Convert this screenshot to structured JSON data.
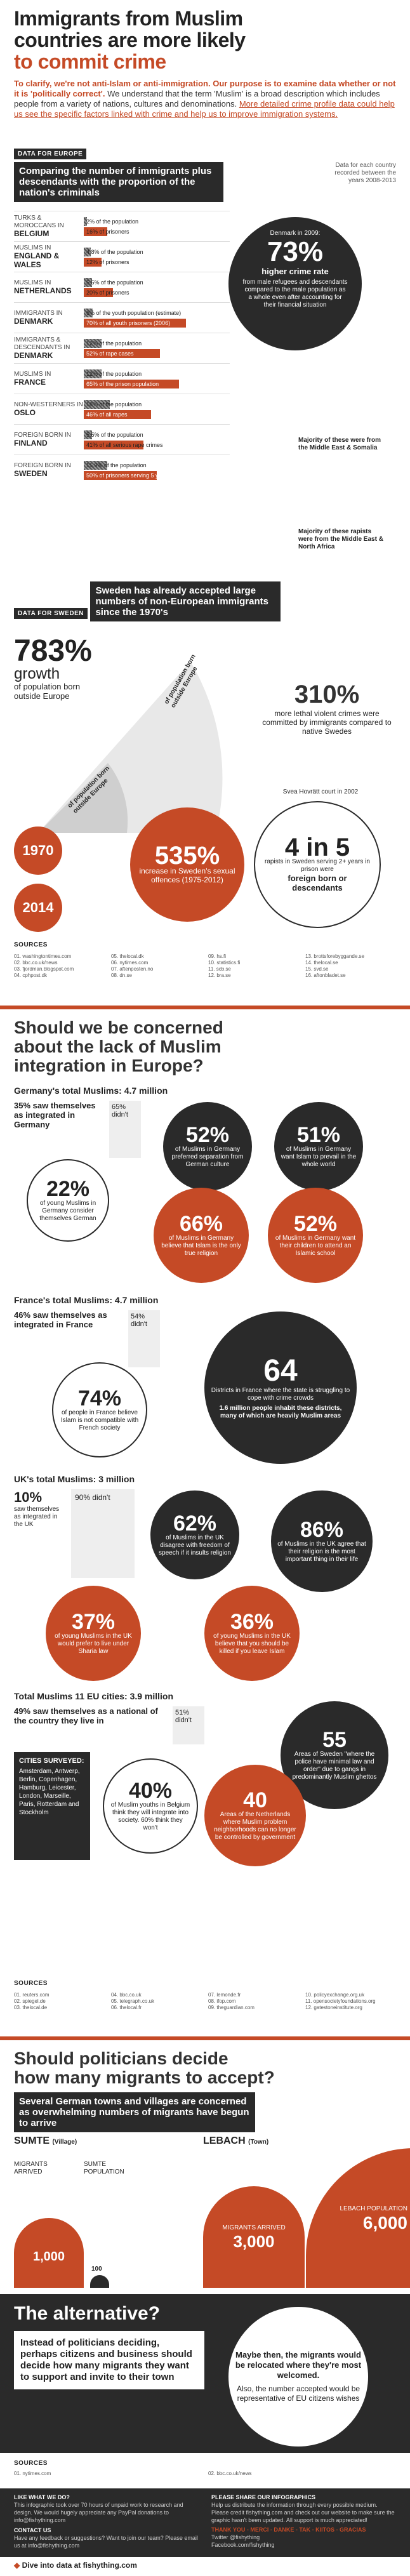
{
  "header": {
    "title_line1": "Immigrants from Muslim",
    "title_line2": "countries are more likely",
    "title_line3": "to commit crime",
    "intro_bold": "To clarify, we're not anti-Islam or anti-immigration. Our purpose is to examine data whether or not it is 'politically correct'.",
    "intro_text": "We understand that the term 'Muslim' is a broad description which includes people from a variety of nations, cultures and denominations.",
    "intro_link": "More detailed crime profile data could help us see the specific factors linked with crime and help us to improve immigration systems."
  },
  "europe": {
    "tag": "DATA FOR EUROPE",
    "title": "Comparing the number of immigrants plus descendants with the proportion of the nation's criminals",
    "data_note": "Data for each country recorded between the years 2008-2013",
    "rows": [
      {
        "country": "BELGIUM",
        "pre": "TURKS & MOROCCANS IN",
        "b1": "2% of the population",
        "b1v": 2,
        "b2": "16% of prisoners",
        "b2v": 16
      },
      {
        "country": "ENGLAND & WALES",
        "pre": "MUSLIMS IN",
        "b1": "4.8% of the population",
        "b1v": 4.8,
        "b2": "12% of prisoners",
        "b2v": 12
      },
      {
        "country": "NETHERLANDS",
        "pre": "MUSLIMS IN",
        "b1": "5.5% of the population",
        "b1v": 5.5,
        "b2": "20% of prisoners",
        "b2v": 20
      },
      {
        "country": "DENMARK",
        "pre": "IMMIGRANTS IN",
        "b1": "6% of the youth population (estimate)",
        "b1v": 6,
        "b2": "70% of all youth prisoners (2006)",
        "b2v": 70
      },
      {
        "country": "DENMARK",
        "pre": "IMMIGRANTS & DESCENDANTS IN",
        "b1": "12% of the population",
        "b1v": 12,
        "b2": "52% of rape cases",
        "b2v": 52
      },
      {
        "country": "FRANCE",
        "pre": "MUSLIMS IN",
        "b1": "12% of the population",
        "b1v": 12,
        "b2": "65% of the prison population",
        "b2v": 65
      },
      {
        "country": "OSLO",
        "pre": "NON-WESTERNERS IN",
        "b1": "18% of the population",
        "b1v": 18,
        "b2": "46% of all rapes",
        "b2v": 46
      },
      {
        "country": "FINLAND",
        "pre": "FOREIGN BORN IN",
        "b1": "5.5% of the population",
        "b1v": 5.5,
        "b2": "41% of all serious rape crimes",
        "b2v": 41
      },
      {
        "country": "SWEDEN",
        "pre": "FOREIGN BORN IN",
        "b1": "15.9% of the population",
        "b1v": 15.9,
        "b2": "50% of prisoners serving 5 years",
        "b2v": 50
      }
    ],
    "denmark_callout": {
      "label": "Denmark in 2009:",
      "value": "73%",
      "text": "higher crime rate",
      "detail": "from male refugees and descendants compared to the male population as a whole even after accounting for their financial situation"
    },
    "denmark_rape_note": "Majority of these were from the Middle East & Somalia",
    "finland_note": "Majority of these rapists were from the Middle East & North Africa"
  },
  "sweden": {
    "tag": "DATA FOR SWEDEN",
    "title": "Sweden has already accepted large numbers of non-European immigrants since the 1970's",
    "growth_value": "783%",
    "growth_word": "growth",
    "growth_text": "of population born outside Europe",
    "arc_label1": "of population born outside Europe",
    "arc_label2": "of population born outside Europe",
    "violent_value": "310%",
    "violent_text": "more lethal violent crimes were committed by immigrants compared to native Swedes",
    "year_1970": "1970",
    "year_2014": "2014",
    "rape_value": "535%",
    "rape_text": "increase in Sweden's sexual offences (1975-2012)",
    "svea_note": "Svea Hovrätt court in 2002",
    "four_in_five": "4 in 5",
    "four_text": "rapists in Sweden serving 2+ years in prison were",
    "four_bold": "foreign born or descendants"
  },
  "sources1": {
    "title": "SOURCES",
    "items": [
      "01. washingtontimes.com",
      "02. bbc.co.uk/news",
      "03. fjordman.blogspot.com",
      "04. cphpost.dk",
      "05. thelocal.dk",
      "06. nytimes.com",
      "07. aftenposten.no",
      "08. dn.se",
      "09. hs.fi",
      "10. statistics.fi",
      "11. scb.se",
      "12. bra.se",
      "13. brottsforebyggande.se",
      "14. thelocal.se",
      "15. svd.se",
      "16. aftonbladet.se"
    ]
  },
  "integration": {
    "title_line1": "Should we be concerned",
    "title_line2": "about the lack of Muslim",
    "title_line3": "integration in Europe?",
    "germany_title": "Germany's total Muslims: 4.7 million",
    "germany_integrated": "35% saw themselves as integrated in Germany",
    "germany_didnt": "65% didn't",
    "germany_b1_value": "22%",
    "germany_b1_text": "of young Muslims in Germany consider themselves German",
    "germany_b2_value": "52%",
    "germany_b2_text": "of Muslims in Germany preferred separation from German culture",
    "germany_b3_value": "51%",
    "germany_b3_text": "of Muslims in Germany want Islam to prevail in the whole world",
    "germany_b4_value": "66%",
    "germany_b4_text": "of Muslims in Germany believe that Islam is the only true religion",
    "germany_b5_value": "52%",
    "germany_b5_text": "of Muslims in Germany want their children to attend an Islamic school",
    "france_title": "France's total Muslims: 4.7 million",
    "france_integrated": "46% saw themselves as integrated in France",
    "france_didnt": "54% didn't",
    "france_b1_value": "74%",
    "france_b1_text": "of people in France believe Islam is not compatible with French society",
    "france_b2_value": "64",
    "france_b2_text": "Districts in France where the state is struggling to cope with crime crowds",
    "france_b2_detail": "1.6 million people inhabit these districts, many of which are heavily Muslim areas",
    "uk_title": "UK's total Muslims: 3 million",
    "uk_integrated_value": "10%",
    "uk_integrated_text": "saw themselves as integrated in the UK",
    "uk_didnt": "90% didn't",
    "uk_b1_value": "62%",
    "uk_b1_text": "of Muslims in the UK disagree with freedom of speech if it insults religion",
    "uk_b2_value": "86%",
    "uk_b2_text": "of Muslims in the UK agree that their religion is the most important thing in their life",
    "uk_b3_value": "37%",
    "uk_b3_text": "of young Muslims in the UK would prefer to live under Sharia law",
    "uk_b4_value": "36%",
    "uk_b4_text": "of young Muslims in the UK believe that you should be killed if you leave Islam",
    "eu_title": "Total Muslims 11 EU cities: 3.9 million",
    "eu_integrated": "49% saw themselves as a national of the country they live in",
    "eu_didnt": "51% didn't",
    "eu_cities_title": "CITIES SURVEYED:",
    "eu_cities": "Amsterdam, Antwerp, Berlin, Copenhagen, Hamburg, Leicester, London, Marseille, Paris, Rotterdam and Stockholm",
    "eu_b1_value": "40%",
    "eu_b1_text": "of Muslim youths in Belgium think they will integrate into society. 60% think they won't",
    "eu_b2_value": "55",
    "eu_b2_text": "Areas of Sweden \"where the police have minimal law and order\" due to gangs in predominantly Muslim ghettos",
    "eu_b3_value": "40",
    "eu_b3_text": "Areas of the Netherlands where Muslim problem neighborhoods can no longer be controlled by government"
  },
  "sources2": {
    "title": "SOURCES",
    "items": [
      "01. reuters.com",
      "02. spiegel.de",
      "03. thelocal.de",
      "04. bbc.co.uk",
      "05. telegraph.co.uk",
      "06. thelocal.fr",
      "07. lemonde.fr",
      "08. ifop.com",
      "09. theguardian.com",
      "10. policyexchange.org.uk",
      "11. opensocietyfoundations.org",
      "12. gatestoneinstitute.org"
    ]
  },
  "politicians": {
    "title_line1": "Should politicians decide",
    "title_line2": "how many migrants to accept?",
    "subtitle": "Several German towns and villages are concerned as overwhelming numbers of migrants have begun to arrive",
    "sumte_title": "SUMTE",
    "sumte_sub": "(Village)",
    "lebach_title": "LEBACH",
    "lebach_sub": "(Town)",
    "sumte_migrants_label": "MIGRANTS ARRIVED",
    "sumte_residents_label": "SUMTE POPULATION",
    "sumte_migrants": "1,000",
    "sumte_residents": "100",
    "lebach_migrants_label": "MIGRANTS ARRIVED",
    "lebach_residents_label": "LEBACH POPULATION",
    "lebach_migrants": "3,000",
    "lebach_residents": "6,000"
  },
  "alternative": {
    "title": "The alternative?",
    "left_text": "Instead of politicians deciding, perhaps citizens and business should decide how many migrants they want to support and invite to their town",
    "right_text1": "Maybe then, the migrants would be relocated where they're most welcomed.",
    "right_text2": "Also, the number accepted would be representative of EU citizens wishes"
  },
  "sources3": {
    "title": "SOURCES",
    "items": [
      "01. nytimes.com",
      "02. bbc.co.uk/news"
    ]
  },
  "footer": {
    "like_title": "LIKE WHAT WE DO?",
    "like_text": "This infographic took over 70 hours of unpaid work to research and design. We would hugely appreciate any PayPal donations to info@fishything.com",
    "contact_title": "CONTACT US",
    "contact_text": "Have any feedback or suggestions? Want to join our team? Please email us at info@fishything.com",
    "share_title": "PLEASE SHARE OUR INFOGRAPHICS",
    "share_text": "Help us distribute the information through every possible medium. Please credit fishything.com and check out our website to make sure the graphic hasn't been updated. All support is much appreciated!",
    "thanks_text": "THANK YOU - MERCI - DANKE - TAK - KIITOS - GRACIAS",
    "twitter": "Twitter @fishything",
    "facebook": "Facebook.com/fishything",
    "brand": "Dive into data at fishything.com"
  }
}
